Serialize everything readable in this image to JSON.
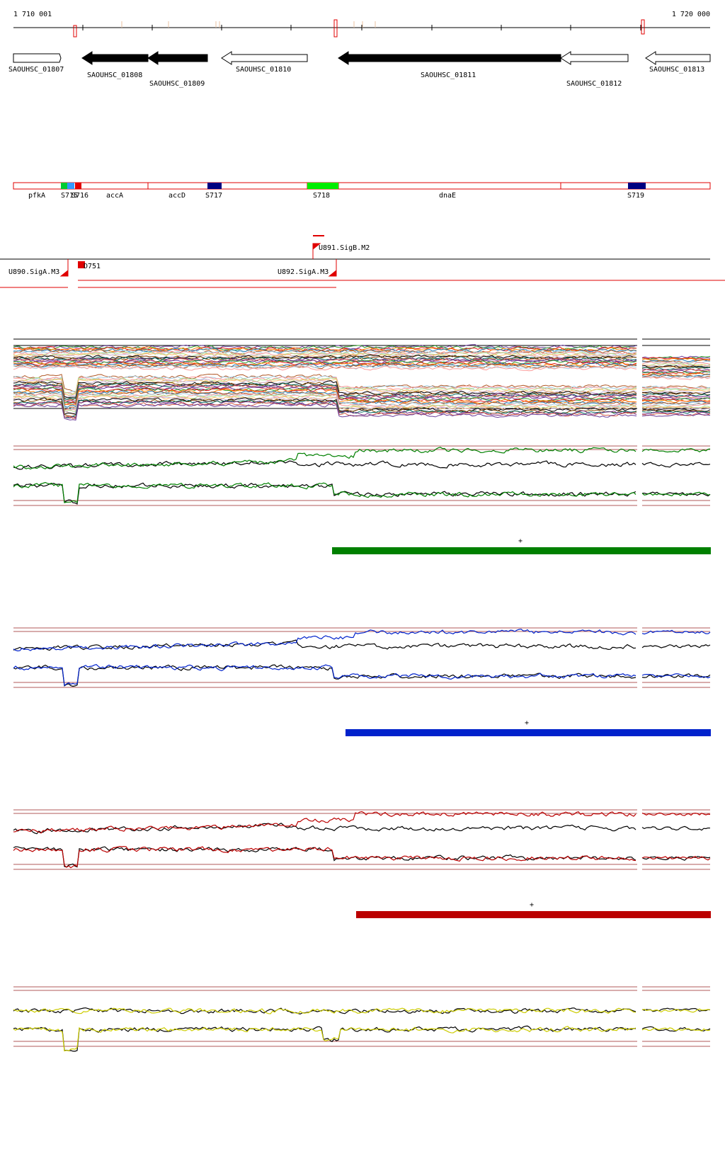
{
  "ruler": {
    "start_label": "1 710 001",
    "end_label": "1 720 000"
  },
  "genes": [
    {
      "label": "SAOUHSC_01807",
      "strand": "+",
      "fill": "white"
    },
    {
      "label": "SAOUHSC_01808",
      "strand": "-",
      "fill": "black"
    },
    {
      "label": "SAOUHSC_01809",
      "strand": "-",
      "fill": "black"
    },
    {
      "label": "SAOUHSC_01810",
      "strand": "-",
      "fill": "white"
    },
    {
      "label": "SAOUHSC_01811",
      "strand": "-",
      "fill": "black"
    },
    {
      "label": "SAOUHSC_01812",
      "strand": "-",
      "fill": "white"
    },
    {
      "label": "SAOUHSC_01813",
      "strand": "-",
      "fill": "white"
    }
  ],
  "annotation_segments": [
    {
      "label": "pfkA"
    },
    {
      "label": "accA"
    },
    {
      "label": "accD"
    },
    {
      "label": "dnaE"
    }
  ],
  "annotation_blocks": [
    {
      "label": "S715",
      "color": "#00cc33"
    },
    {
      "label": "S716",
      "color": "#3399ff"
    },
    {
      "label": "",
      "color": "#e00000"
    },
    {
      "label": "S717",
      "color": "#000080"
    },
    {
      "label": "S718",
      "color": "#00ee00"
    },
    {
      "label": "S719",
      "color": "#000080"
    }
  ],
  "promoters": [
    {
      "label": "U890.SigA.M3"
    },
    {
      "label": "D751"
    },
    {
      "label": "U891.SigB.M2"
    },
    {
      "label": "U892.SigA.M3"
    }
  ],
  "tracks": [
    {
      "color": "#008000",
      "bar_label": "+"
    },
    {
      "color": "#0022cc",
      "bar_label": "+"
    },
    {
      "color": "#bb0000",
      "bar_label": "+"
    },
    {
      "color": "#cccc00",
      "bar_label": ""
    }
  ],
  "colors": {
    "outline": "#e00000",
    "threshold": "#a03030"
  }
}
